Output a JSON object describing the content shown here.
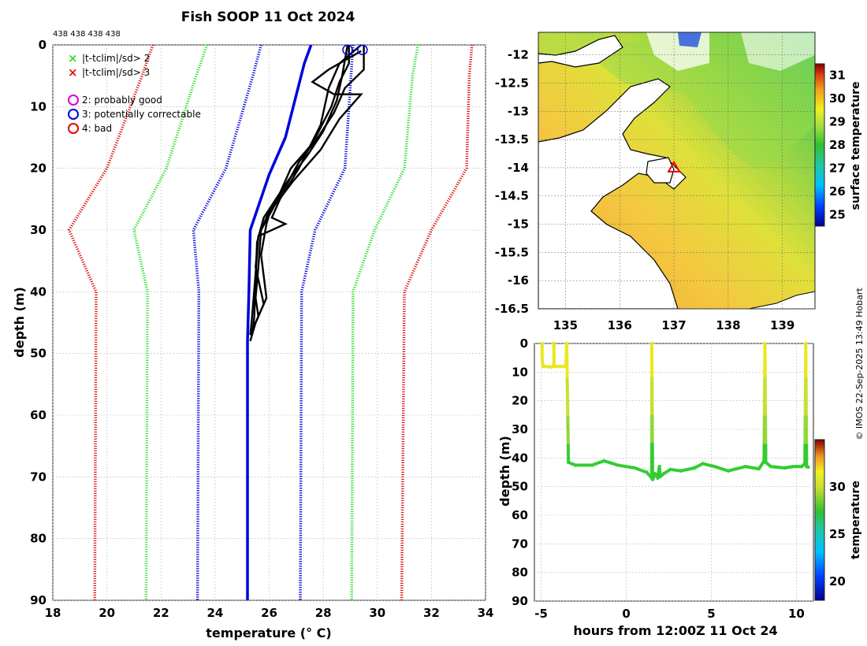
{
  "title": "Fish SOOP 11 Oct 2024",
  "profile_counts": "438 438 438 438",
  "credit": "© IMOS 22-Sep-2025 13:49 Hobart",
  "colors": {
    "sd2": "#33dd33",
    "sd3": "#dd1111",
    "clim": "#0000dd",
    "profile": "#000000",
    "probably_good": "#dd00dd",
    "correctable": "#0000dd",
    "bad": "#ee0000",
    "land": "#ffffff",
    "coast": "#000000",
    "grid": "#bbbbbb"
  },
  "legend": {
    "items": [
      {
        "symbol": "×",
        "color": "#33dd33",
        "label": "|t-tclim|/sd> 2"
      },
      {
        "symbol": "×",
        "color": "#dd1111",
        "label": "|t-tclim|/sd> 3"
      },
      {
        "symbol": "○",
        "color": "#dd00dd",
        "label": "2: probably good"
      },
      {
        "symbol": "○",
        "color": "#0000dd",
        "label": "3: potentially correctable"
      },
      {
        "symbol": "○",
        "color": "#ee0000",
        "label": "4: bad"
      }
    ]
  },
  "chart_data": [
    {
      "type": "line",
      "name": "profile",
      "xlabel": "temperature (° C)",
      "ylabel": "depth (m)",
      "xlim": [
        18,
        34
      ],
      "ylim": [
        0,
        90
      ],
      "y_reversed": true,
      "xticks": [
        18,
        20,
        22,
        24,
        26,
        28,
        30,
        32,
        34
      ],
      "yticks": [
        0,
        10,
        20,
        30,
        40,
        50,
        60,
        70,
        80,
        90
      ],
      "series": [
        {
          "name": "clim mean",
          "style": "solid",
          "color": "#0000dd",
          "points": [
            [
              27.55,
              0
            ],
            [
              27.3,
              3
            ],
            [
              26.6,
              15
            ],
            [
              26.0,
              21
            ],
            [
              25.3,
              30
            ],
            [
              25.25,
              40
            ],
            [
              25.2,
              48
            ],
            [
              25.2,
              90
            ]
          ]
        },
        {
          "name": "-1 sd",
          "style": "dotted",
          "color": "#0000dd",
          "points": [
            [
              25.7,
              0
            ],
            [
              25.4,
              5
            ],
            [
              24.4,
              20
            ],
            [
              23.2,
              30
            ],
            [
              23.4,
              40
            ],
            [
              23.35,
              90
            ]
          ]
        },
        {
          "name": "+1 sd",
          "style": "dotted",
          "color": "#0000dd",
          "points": [
            [
              29.1,
              0
            ],
            [
              28.8,
              20
            ],
            [
              27.7,
              30
            ],
            [
              27.2,
              40
            ],
            [
              27.15,
              90
            ]
          ]
        },
        {
          "name": "-2 sd",
          "style": "dotted",
          "color": "#33dd33",
          "points": [
            [
              23.7,
              0
            ],
            [
              23.3,
              5
            ],
            [
              22.2,
              20
            ],
            [
              21.0,
              30
            ],
            [
              21.5,
              40
            ],
            [
              21.45,
              90
            ]
          ]
        },
        {
          "name": "+2 sd",
          "style": "dotted",
          "color": "#33dd33",
          "points": [
            [
              31.5,
              0
            ],
            [
              31.3,
              5
            ],
            [
              31.0,
              20
            ],
            [
              29.9,
              30
            ],
            [
              29.1,
              40
            ],
            [
              29.05,
              90
            ]
          ]
        },
        {
          "name": "-3 sd",
          "style": "dotted",
          "color": "#dd1111",
          "points": [
            [
              21.7,
              0
            ],
            [
              21.3,
              5
            ],
            [
              20.0,
              20
            ],
            [
              18.6,
              30
            ],
            [
              19.6,
              40
            ],
            [
              19.55,
              90
            ]
          ]
        },
        {
          "name": "+3 sd",
          "style": "dotted",
          "color": "#dd1111",
          "points": [
            [
              33.5,
              0
            ],
            [
              33.4,
              5
            ],
            [
              33.3,
              20
            ],
            [
              32.0,
              30
            ],
            [
              31.0,
              40
            ],
            [
              30.9,
              90
            ]
          ]
        },
        {
          "name": "profile 1",
          "style": "solid",
          "color": "#000000",
          "points": [
            [
              28.95,
              0
            ],
            [
              28.95,
              3
            ],
            [
              28.6,
              6
            ],
            [
              28.3,
              10
            ],
            [
              27.6,
              16
            ],
            [
              26.8,
              20
            ],
            [
              26.4,
              24
            ],
            [
              25.8,
              28
            ],
            [
              25.55,
              32
            ],
            [
              25.5,
              38
            ],
            [
              25.45,
              44
            ],
            [
              25.4,
              46
            ]
          ]
        },
        {
          "name": "profile 2",
          "style": "solid",
          "color": "#000000",
          "points": [
            [
              29.5,
              0
            ],
            [
              29.5,
              4
            ],
            [
              28.8,
              7
            ],
            [
              28.4,
              11
            ],
            [
              27.8,
              15
            ],
            [
              27.1,
              19
            ],
            [
              26.6,
              23
            ],
            [
              26.0,
              27
            ],
            [
              25.6,
              31
            ],
            [
              25.5,
              37
            ],
            [
              25.35,
              45
            ],
            [
              25.3,
              47
            ]
          ]
        },
        {
          "name": "profile 3",
          "style": "solid",
          "color": "#000000",
          "points": [
            [
              29.4,
              1
            ],
            [
              28.2,
              4
            ],
            [
              27.6,
              6
            ],
            [
              28.4,
              8
            ],
            [
              29.4,
              8
            ],
            [
              28.6,
              12
            ],
            [
              27.9,
              17
            ],
            [
              26.9,
              22
            ],
            [
              26.2,
              26
            ],
            [
              25.7,
              30
            ],
            [
              25.6,
              36
            ],
            [
              25.5,
              41
            ],
            [
              25.6,
              44
            ],
            [
              25.3,
              47
            ]
          ]
        },
        {
          "name": "profile 4",
          "style": "solid",
          "color": "#000000",
          "points": [
            [
              28.9,
              0
            ],
            [
              28.7,
              5
            ],
            [
              28.5,
              9
            ],
            [
              28.0,
              14
            ],
            [
              27.4,
              18
            ],
            [
              26.7,
              22
            ],
            [
              26.1,
              26
            ],
            [
              25.9,
              29
            ],
            [
              25.7,
              34
            ],
            [
              25.9,
              41
            ],
            [
              25.5,
              45
            ],
            [
              25.3,
              48
            ]
          ]
        },
        {
          "name": "profile 5",
          "style": "solid",
          "color": "#000000",
          "points": [
            [
              29.4,
              0
            ],
            [
              28.6,
              3
            ],
            [
              28.2,
              7
            ],
            [
              27.9,
              13
            ],
            [
              27.1,
              20
            ],
            [
              26.4,
              25
            ],
            [
              26.1,
              28
            ],
            [
              26.6,
              29
            ],
            [
              25.6,
              31
            ],
            [
              25.5,
              36
            ],
            [
              25.8,
              42
            ],
            [
              25.4,
              46
            ]
          ]
        }
      ],
      "markers": [
        {
          "label": "3: potentially correctable",
          "x": 28.9,
          "y": 0.8
        },
        {
          "label": "3: potentially correctable",
          "x": 29.45,
          "y": 0.8
        }
      ]
    },
    {
      "type": "heatmap",
      "name": "sst map",
      "colorbar_label": "surface temperature",
      "xlim": [
        134.5,
        139.6
      ],
      "ylim": [
        -16.5,
        -11.6
      ],
      "xticks": [
        135,
        136,
        137,
        138,
        139
      ],
      "yticks": [
        -12,
        -12.5,
        -13,
        -13.5,
        -14,
        -14.5,
        -15,
        -15.5,
        -16,
        -16.5
      ],
      "clim": [
        24.5,
        31.5
      ],
      "cbar_ticks": [
        25,
        26,
        27,
        28,
        29,
        30,
        31
      ],
      "marker": {
        "symbol": "triangle",
        "lon": 137.0,
        "lat": -14.0,
        "color": "#ee0000"
      }
    },
    {
      "type": "scatter",
      "name": "depth vs time",
      "xlabel": "hours from 12:00Z 11 Oct 24",
      "ylabel": "depth (m)",
      "colorbar_label": "temperature",
      "xlim": [
        -5.4,
        11.0
      ],
      "ylim": [
        0,
        90
      ],
      "y_reversed": true,
      "xticks": [
        -5,
        0,
        5,
        10
      ],
      "yticks": [
        0,
        10,
        20,
        30,
        40,
        50,
        60,
        70,
        80,
        90
      ],
      "clim": [
        18,
        35
      ],
      "cbar_ticks": [
        20,
        25,
        30
      ],
      "track": [
        [
          -4.95,
          0
        ],
        [
          -4.95,
          4
        ],
        [
          -4.9,
          8
        ],
        [
          -4.4,
          8.2
        ],
        [
          -4.25,
          8
        ],
        [
          -4.25,
          0
        ],
        [
          -4.25,
          8
        ],
        [
          -3.55,
          8
        ],
        [
          -3.5,
          0
        ],
        [
          -3.45,
          20
        ],
        [
          -3.4,
          41.5
        ],
        [
          -3.0,
          42.5
        ],
        [
          -2.0,
          42.5
        ],
        [
          -1.3,
          41
        ],
        [
          -0.5,
          42.5
        ],
        [
          0.5,
          43.5
        ],
        [
          1.2,
          45
        ],
        [
          1.5,
          47
        ],
        [
          1.5,
          0
        ],
        [
          1.55,
          47.5
        ],
        [
          1.7,
          45.5
        ],
        [
          1.85,
          47
        ],
        [
          1.95,
          43
        ],
        [
          2.0,
          46.5
        ],
        [
          2.2,
          45.5
        ],
        [
          2.6,
          44
        ],
        [
          3.2,
          44.5
        ],
        [
          4.0,
          43.5
        ],
        [
          4.5,
          42
        ],
        [
          5.2,
          43
        ],
        [
          6.0,
          44.5
        ],
        [
          7.0,
          43
        ],
        [
          7.8,
          43.8
        ],
        [
          8.1,
          41
        ],
        [
          8.15,
          0
        ],
        [
          8.2,
          41.5
        ],
        [
          8.5,
          43
        ],
        [
          9.3,
          43.5
        ],
        [
          9.8,
          43
        ],
        [
          10.3,
          43
        ],
        [
          10.5,
          42
        ],
        [
          10.55,
          0
        ],
        [
          10.6,
          43
        ],
        [
          10.7,
          43.2
        ]
      ]
    }
  ]
}
